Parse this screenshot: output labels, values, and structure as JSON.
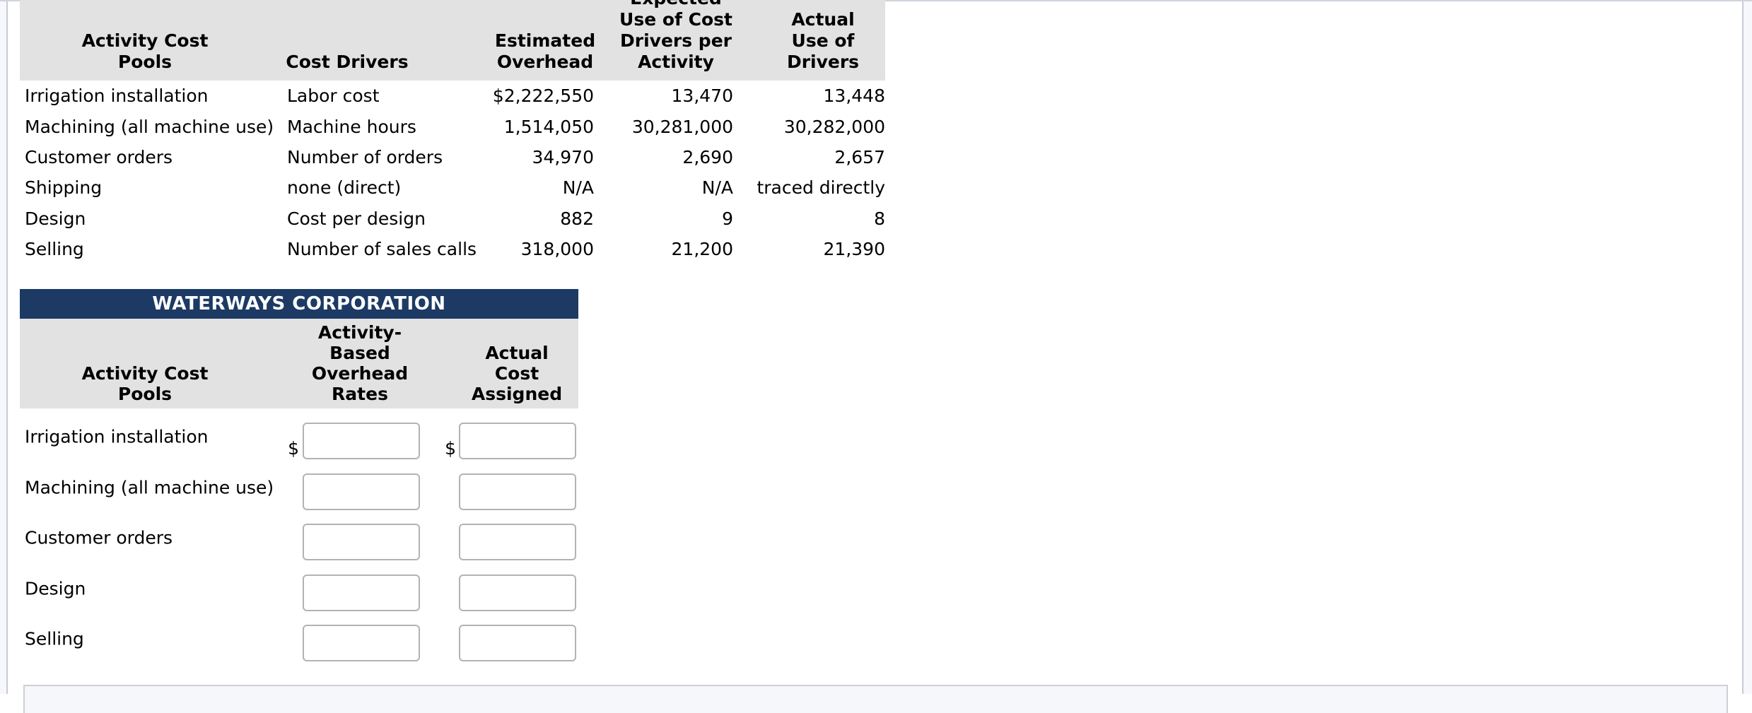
{
  "colors": {
    "title_navy": "#1c3a64",
    "header_gray": "#e2e2e2",
    "panel_blue_gray": "#f5f7fa",
    "input_border": "#b3b3b3"
  },
  "table1": {
    "headers": [
      "Activity Cost\nPools",
      "Cost Drivers",
      "Estimated\nOverhead",
      "Expected\nUse of Cost\nDrivers per\nActivity",
      "Actual Use of\nDrivers"
    ],
    "rows": [
      [
        "Irrigation installation",
        "Labor cost",
        "$2,222,550",
        "13,470",
        "13,448"
      ],
      [
        "Machining (all machine use)",
        "Machine hours",
        "1,514,050",
        "30,281,000",
        "30,282,000"
      ],
      [
        "Customer orders",
        "Number of orders",
        "34,970",
        "2,690",
        "2,657"
      ],
      [
        "Shipping",
        "none (direct)",
        "N/A",
        "N/A",
        "traced directly"
      ],
      [
        "Design",
        "Cost per design",
        "882",
        "9",
        "8"
      ],
      [
        "Selling",
        "Number of sales calls",
        "318,000",
        "21,200",
        "21,390"
      ]
    ]
  },
  "table2": {
    "title": "WATERWAYS CORPORATION",
    "headers": [
      "Activity Cost\nPools",
      "Activity-\nBased\nOverhead\nRates",
      "Actual\nCost\nAssigned"
    ],
    "rows": [
      {
        "label": "Irrigation installation",
        "rate_prefix": "$",
        "actual_prefix": "$",
        "rate_value": "",
        "actual_value": ""
      },
      {
        "label": "Machining (all machine use)",
        "rate_value": "",
        "actual_value": ""
      },
      {
        "label": "Customer orders",
        "rate_value": "",
        "actual_value": ""
      },
      {
        "label": "Design",
        "rate_value": "",
        "actual_value": ""
      },
      {
        "label": "Selling",
        "rate_value": "",
        "actual_value": ""
      }
    ]
  }
}
